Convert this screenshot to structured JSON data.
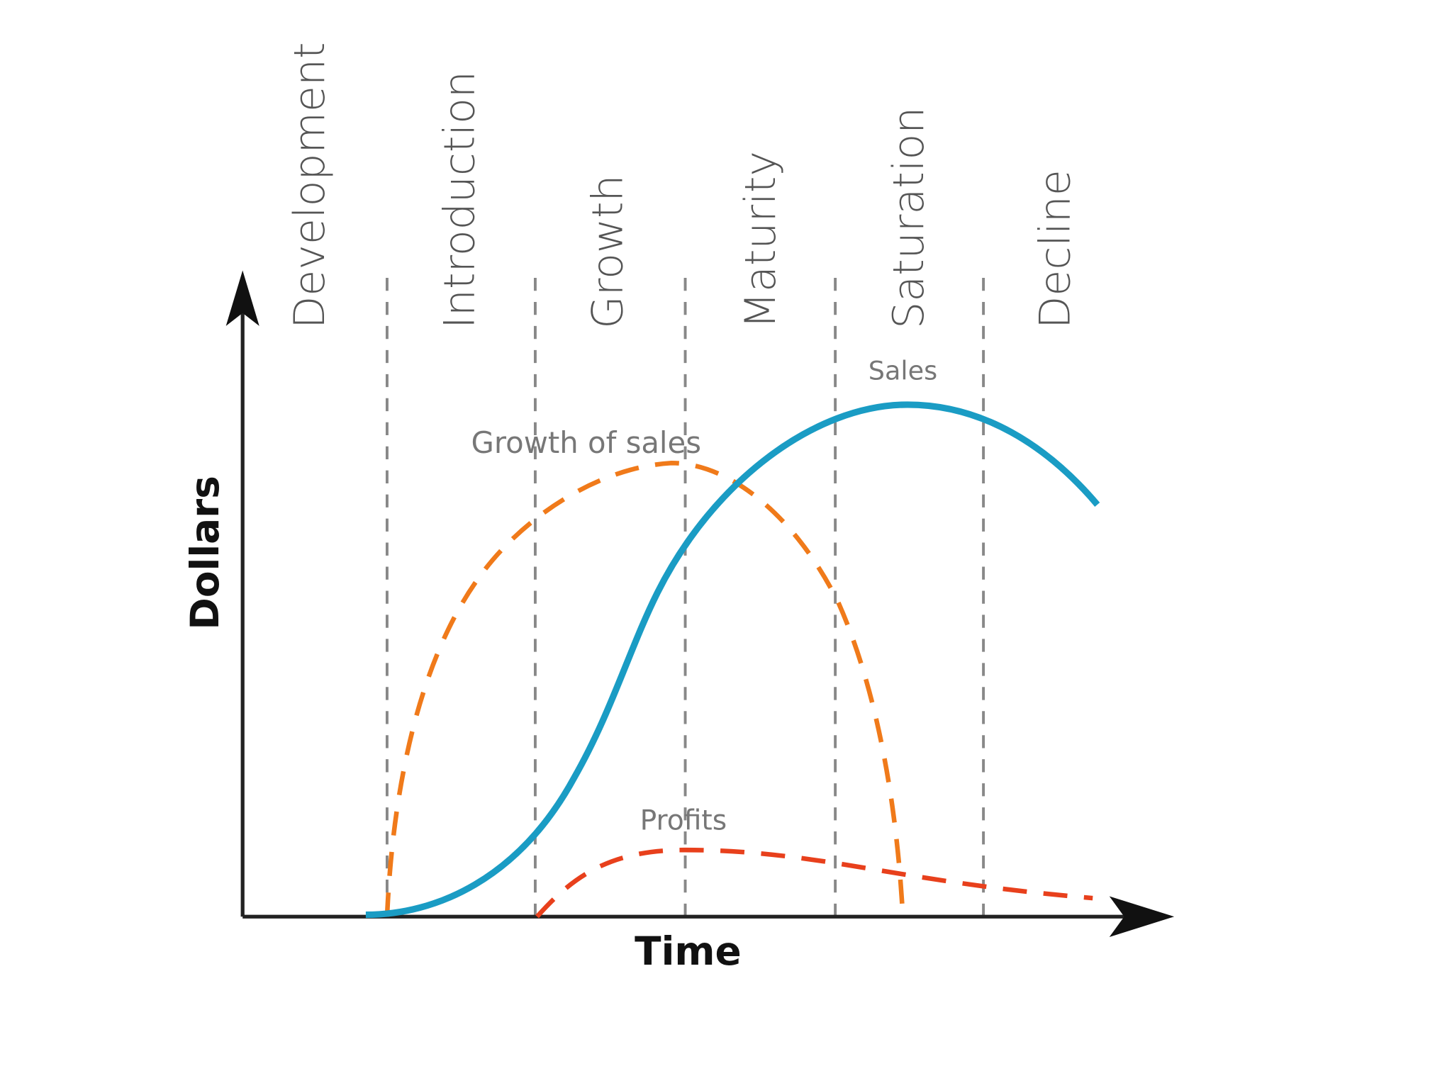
{
  "stages": [
    "Development",
    "Introduction",
    "Growth",
    "Maturity",
    "Saturation",
    "Decline"
  ],
  "axes": {
    "y": "Dollars",
    "x": "Time"
  },
  "curves": [
    {
      "label": "Sales"
    },
    {
      "label": "Growth of sales"
    },
    {
      "label": "Profits"
    }
  ]
}
